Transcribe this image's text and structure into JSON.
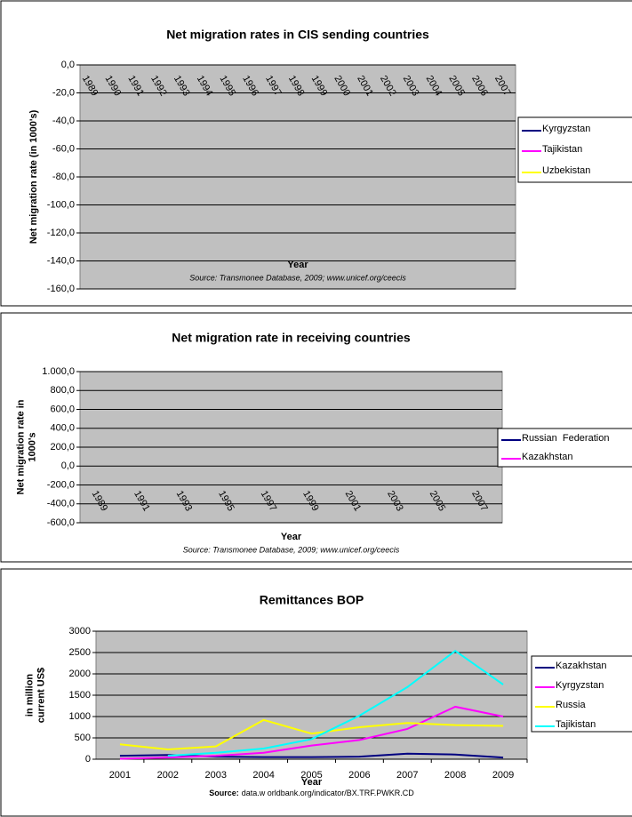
{
  "chart_data": [
    {
      "type": "line",
      "title": "Net migration rates in CIS sending countries",
      "x_label": "Year",
      "y_label": [
        "Net migration rate (in 1000's)"
      ],
      "source": "Source: Transmonee Database, 2009; www.unicef.org/ceecis",
      "categories": [
        "1989",
        "1990",
        "1991",
        "1992",
        "1993",
        "1994",
        "1995",
        "1996",
        "1997",
        "1998",
        "1999",
        "2000",
        "2001",
        "2002",
        "2003",
        "2004",
        "2005",
        "2006",
        "2007"
      ],
      "series": [
        {
          "name": "Kyrgyzstan",
          "color": "#000080",
          "values": [
            null,
            null,
            null,
            null,
            null,
            null,
            null,
            null,
            null,
            null,
            null,
            null,
            null,
            null,
            null,
            null,
            null,
            null,
            null
          ]
        },
        {
          "name": "Tajikistan",
          "color": "#ff00ff",
          "values": [
            null,
            null,
            null,
            null,
            null,
            null,
            null,
            null,
            null,
            null,
            null,
            null,
            null,
            null,
            null,
            null,
            null,
            null,
            null
          ]
        },
        {
          "name": "Uzbekistan",
          "color": "#ffff00",
          "values": [
            null,
            null,
            null,
            null,
            null,
            null,
            null,
            null,
            null,
            null,
            null,
            null,
            null,
            null,
            null,
            null,
            null,
            null,
            null
          ]
        }
      ],
      "ylim": [
        -160,
        0
      ],
      "yticks": [
        {
          "value": 0,
          "label": "0,0"
        },
        {
          "value": -20,
          "label": "-20,0"
        },
        {
          "value": -40,
          "label": "-40,0"
        },
        {
          "value": -60,
          "label": "-60,0"
        },
        {
          "value": -80,
          "label": "-80,0"
        },
        {
          "value": -100,
          "label": "-100,0"
        },
        {
          "value": -120,
          "label": "-120,0"
        },
        {
          "value": -140,
          "label": "-140,0"
        },
        {
          "value": -160,
          "label": "-160,0"
        }
      ],
      "grid": true
    },
    {
      "type": "line",
      "title": "Net migration rate in receiving countries",
      "x_label": "Year",
      "y_label": [
        "Net migration  rate in",
        "1000's"
      ],
      "source": "Source: Transmonee Database, 2009; www.unicef.org/ceecis",
      "categories": [
        "1989",
        "1991",
        "1993",
        "1995",
        "1997",
        "1999",
        "2001",
        "2003",
        "2005",
        "2007"
      ],
      "series": [
        {
          "name": "Russian  Federation",
          "color": "#000080",
          "values": [
            null,
            null,
            null,
            null,
            null,
            null,
            null,
            null,
            null,
            null
          ]
        },
        {
          "name": "Kazakhstan",
          "color": "#ff00ff",
          "values": [
            null,
            null,
            null,
            null,
            null,
            null,
            null,
            null,
            null,
            null
          ]
        }
      ],
      "ylim": [
        -600,
        1000
      ],
      "yticks": [
        {
          "value": 1000,
          "label": "1.000,0"
        },
        {
          "value": 800,
          "label": "800,0"
        },
        {
          "value": 600,
          "label": "600,0"
        },
        {
          "value": 400,
          "label": "400,0"
        },
        {
          "value": 200,
          "label": "200,0"
        },
        {
          "value": 0,
          "label": "0,0"
        },
        {
          "value": -200,
          "label": "-200,0"
        },
        {
          "value": -400,
          "label": "-400,0"
        },
        {
          "value": -600,
          "label": "-600,0"
        }
      ],
      "grid": true
    },
    {
      "type": "line",
      "title": "Remittances BOP",
      "x_label": "Year",
      "y_label": [
        "in million",
        "current US$"
      ],
      "source_label": "Source:",
      "source": "data.w orldbank.org/indicator/BX.TRF.PWKR.CD",
      "categories": [
        "2001",
        "2002",
        "2003",
        "2004",
        "2005",
        "2006",
        "2007",
        "2008",
        "2009"
      ],
      "series": [
        {
          "name": "Kazakhstan",
          "color": "#000080",
          "values": [
            80,
            100,
            60,
            50,
            50,
            60,
            130,
            110,
            40
          ]
        },
        {
          "name": "Kyrgyzstan",
          "color": "#ff00ff",
          "values": [
            10,
            40,
            80,
            150,
            320,
            450,
            710,
            1230,
            1000
          ]
        },
        {
          "name": "Russia",
          "color": "#ffff00",
          "values": [
            350,
            230,
            300,
            920,
            600,
            750,
            850,
            800,
            780
          ]
        },
        {
          "name": "Tajikistan",
          "color": "#00ffff",
          "values": [
            null,
            80,
            150,
            250,
            470,
            1020,
            1690,
            2540,
            1750
          ]
        }
      ],
      "ylim": [
        0,
        3000
      ],
      "yticks": [
        0,
        500,
        1000,
        1500,
        2000,
        2500,
        3000
      ],
      "grid": true
    }
  ]
}
